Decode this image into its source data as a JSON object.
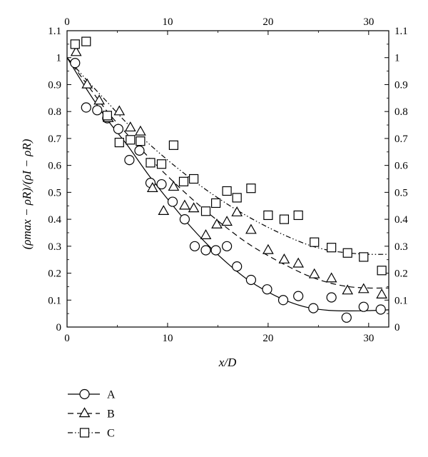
{
  "chart_data": {
    "type": "scatter",
    "xlabel": "x/D",
    "ylabel": "(ρmax − ρR)/(ρI − ρR)",
    "xlim": [
      0,
      32
    ],
    "ylim": [
      0,
      1.1
    ],
    "x_ticks": [
      "0",
      "10",
      "20",
      "30"
    ],
    "x_top_ticks": [
      "0",
      "10",
      "20",
      "30"
    ],
    "y_ticks": [
      "0",
      "0.1",
      "0.2",
      "0.3",
      "0.4",
      "0.5",
      "0.6",
      "0.7",
      "0.8",
      "0.9",
      "1",
      "1.1"
    ],
    "grid": false,
    "legend_position": "bottom-left",
    "series": [
      {
        "name": "A",
        "marker": "circle",
        "line": "solid",
        "points": [
          [
            0.8,
            0.98
          ],
          [
            1.9,
            0.815
          ],
          [
            3.0,
            0.805
          ],
          [
            4.0,
            0.775
          ],
          [
            5.1,
            0.735
          ],
          [
            6.2,
            0.62
          ],
          [
            7.2,
            0.655
          ],
          [
            8.3,
            0.535
          ],
          [
            9.4,
            0.53
          ],
          [
            10.5,
            0.465
          ],
          [
            11.7,
            0.4
          ],
          [
            12.7,
            0.3
          ],
          [
            13.8,
            0.285
          ],
          [
            14.8,
            0.285
          ],
          [
            15.9,
            0.3
          ],
          [
            16.9,
            0.225
          ],
          [
            18.3,
            0.175
          ],
          [
            19.9,
            0.14
          ],
          [
            21.5,
            0.1
          ],
          [
            23.0,
            0.115
          ],
          [
            24.5,
            0.07
          ],
          [
            26.3,
            0.11
          ],
          [
            27.8,
            0.035
          ],
          [
            29.5,
            0.075
          ],
          [
            31.2,
            0.065
          ]
        ],
        "curve": [
          [
            0,
            1.0
          ],
          [
            2,
            0.88
          ],
          [
            4,
            0.77
          ],
          [
            6,
            0.675
          ],
          [
            8,
            0.57
          ],
          [
            10,
            0.475
          ],
          [
            12,
            0.385
          ],
          [
            14,
            0.305
          ],
          [
            16,
            0.235
          ],
          [
            18,
            0.175
          ],
          [
            20,
            0.13
          ],
          [
            22,
            0.095
          ],
          [
            24,
            0.072
          ],
          [
            26,
            0.062
          ],
          [
            28,
            0.06
          ],
          [
            30,
            0.061
          ],
          [
            32,
            0.064
          ]
        ]
      },
      {
        "name": "B",
        "marker": "triangle",
        "line": "dashed",
        "points": [
          [
            0.9,
            1.02
          ],
          [
            2.0,
            0.9
          ],
          [
            3.2,
            0.84
          ],
          [
            4.1,
            0.775
          ],
          [
            5.2,
            0.8
          ],
          [
            6.3,
            0.74
          ],
          [
            7.3,
            0.725
          ],
          [
            8.5,
            0.515
          ],
          [
            9.6,
            0.43
          ],
          [
            10.6,
            0.52
          ],
          [
            11.7,
            0.45
          ],
          [
            12.6,
            0.44
          ],
          [
            13.8,
            0.34
          ],
          [
            14.9,
            0.38
          ],
          [
            15.9,
            0.39
          ],
          [
            16.9,
            0.425
          ],
          [
            18.3,
            0.36
          ],
          [
            20.0,
            0.285
          ],
          [
            21.6,
            0.25
          ],
          [
            23.0,
            0.235
          ],
          [
            24.6,
            0.195
          ],
          [
            26.3,
            0.18
          ],
          [
            27.9,
            0.135
          ],
          [
            29.5,
            0.14
          ],
          [
            31.3,
            0.12
          ]
        ],
        "curve": [
          [
            0,
            1.0
          ],
          [
            2,
            0.9
          ],
          [
            4,
            0.8
          ],
          [
            6,
            0.715
          ],
          [
            8,
            0.635
          ],
          [
            10,
            0.56
          ],
          [
            12,
            0.49
          ],
          [
            14,
            0.425
          ],
          [
            16,
            0.365
          ],
          [
            18,
            0.31
          ],
          [
            20,
            0.265
          ],
          [
            22,
            0.225
          ],
          [
            24,
            0.19
          ],
          [
            26,
            0.165
          ],
          [
            28,
            0.15
          ],
          [
            30,
            0.145
          ],
          [
            32,
            0.145
          ]
        ]
      },
      {
        "name": "C",
        "marker": "square",
        "line": "dash-dot-dot",
        "points": [
          [
            0.8,
            1.05
          ],
          [
            1.9,
            1.06
          ],
          [
            4.0,
            0.785
          ],
          [
            5.2,
            0.685
          ],
          [
            6.3,
            0.695
          ],
          [
            7.3,
            0.69
          ],
          [
            8.3,
            0.61
          ],
          [
            9.4,
            0.605
          ],
          [
            10.6,
            0.675
          ],
          [
            11.6,
            0.54
          ],
          [
            12.6,
            0.55
          ],
          [
            13.8,
            0.43
          ],
          [
            14.8,
            0.46
          ],
          [
            15.9,
            0.505
          ],
          [
            16.9,
            0.48
          ],
          [
            18.3,
            0.515
          ],
          [
            20.0,
            0.415
          ],
          [
            21.6,
            0.4
          ],
          [
            23.0,
            0.415
          ],
          [
            24.6,
            0.315
          ],
          [
            26.3,
            0.295
          ],
          [
            27.9,
            0.275
          ],
          [
            29.5,
            0.26
          ],
          [
            31.3,
            0.21
          ]
        ],
        "curve": [
          [
            0,
            1.0
          ],
          [
            2,
            0.915
          ],
          [
            4,
            0.835
          ],
          [
            6,
            0.755
          ],
          [
            8,
            0.685
          ],
          [
            10,
            0.62
          ],
          [
            12,
            0.56
          ],
          [
            14,
            0.505
          ],
          [
            16,
            0.455
          ],
          [
            18,
            0.41
          ],
          [
            20,
            0.37
          ],
          [
            22,
            0.335
          ],
          [
            24,
            0.305
          ],
          [
            26,
            0.285
          ],
          [
            28,
            0.275
          ],
          [
            30,
            0.27
          ],
          [
            32,
            0.27
          ]
        ]
      }
    ]
  }
}
